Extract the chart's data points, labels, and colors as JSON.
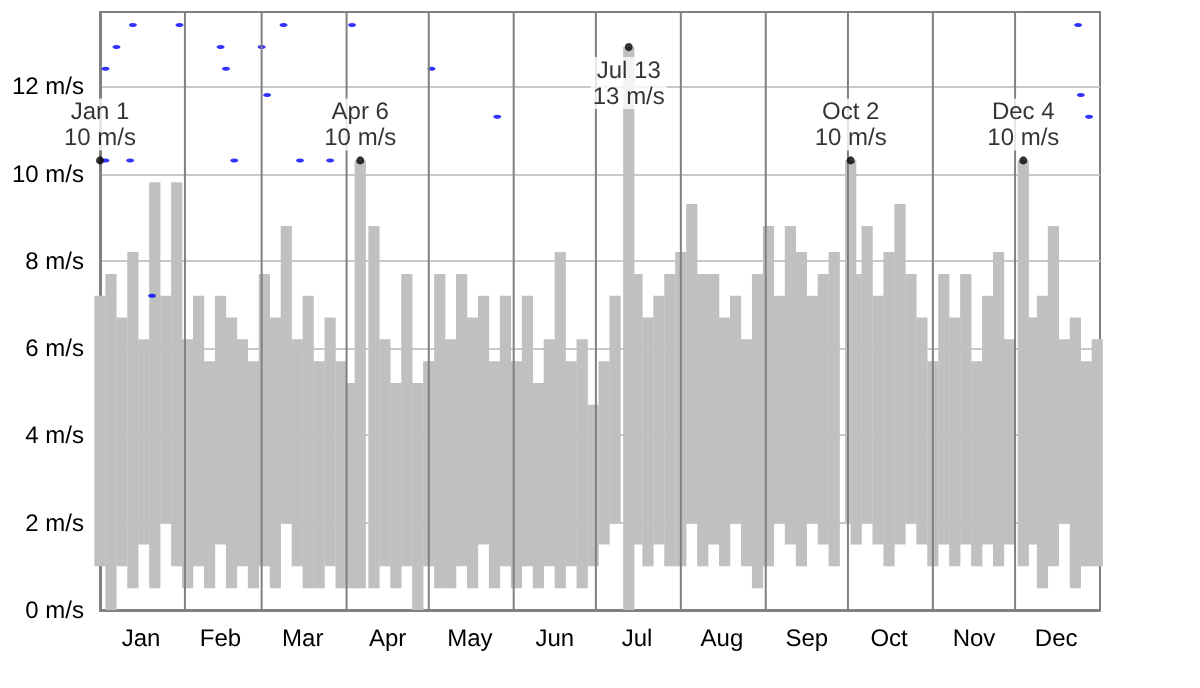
{
  "chart_data": {
    "type": "bar",
    "series": [
      {
        "type": "bar",
        "color": "#c0c0c0",
        "x": [
          "--01-01",
          "--01-05",
          "--01-09",
          "--01-13",
          "--01-17",
          "--01-21",
          "--01-25",
          "--01-29",
          "--02-02",
          "--02-06",
          "--02-10",
          "--02-14",
          "--02-18",
          "--02-22",
          "--02-26",
          "--03-02",
          "--03-06",
          "--03-10",
          "--03-14",
          "--03-18",
          "--03-22",
          "--03-26",
          "--03-30",
          "--04-03",
          "--04-06",
          "--04-11",
          "--04-15",
          "--04-19",
          "--04-23",
          "--04-27",
          "--05-01",
          "--05-05",
          "--05-09",
          "--05-13",
          "--05-17",
          "--05-21",
          "--05-25",
          "--05-29",
          "--06-02",
          "--06-06",
          "--06-10",
          "--06-14",
          "--06-18",
          "--06-22",
          "--06-26",
          "--06-30",
          "--07-04",
          "--07-08",
          "--07-13",
          "--07-16",
          "--07-20",
          "--07-24",
          "--07-28",
          "--08-01",
          "--08-05",
          "--08-09",
          "--08-13",
          "--08-17",
          "--08-21",
          "--08-25",
          "--08-29",
          "--09-02",
          "--09-06",
          "--09-10",
          "--09-14",
          "--09-18",
          "--09-22",
          "--09-26",
          "--10-02",
          "--10-04",
          "--10-08",
          "--10-12",
          "--10-16",
          "--10-20",
          "--10-24",
          "--10-28",
          "--11-01",
          "--11-05",
          "--11-09",
          "--11-13",
          "--11-17",
          "--11-21",
          "--11-25",
          "--11-29",
          "--12-04",
          "--12-07",
          "--12-11",
          "--12-15",
          "--12-19",
          "--12-23",
          "--12-27",
          "--12-31"
        ],
        "base": [
          1.0,
          0,
          1.0,
          0.5,
          1.5,
          0.5,
          2.0,
          1.0,
          0.5,
          1.0,
          0.5,
          1.5,
          0.5,
          1.0,
          0.5,
          1.0,
          0.5,
          2.0,
          1.0,
          0.5,
          0.5,
          1.0,
          0.5,
          0.5,
          0.5,
          0.5,
          1.0,
          0.5,
          1.0,
          0,
          1.0,
          0.5,
          0.5,
          1.0,
          0.5,
          1.5,
          0.5,
          1.0,
          0.5,
          1.0,
          0.5,
          1.0,
          0.5,
          1.0,
          0.5,
          1.0,
          1.5,
          2.0,
          0,
          1.5,
          1.0,
          1.5,
          1.0,
          1.0,
          2.0,
          1.0,
          1.5,
          1.0,
          2.0,
          1.0,
          0.5,
          1.0,
          2.0,
          1.5,
          1.0,
          2.0,
          1.5,
          1.0,
          2.0,
          1.5,
          2.0,
          1.5,
          1.0,
          1.5,
          2.0,
          1.5,
          1.0,
          1.5,
          1.0,
          1.5,
          1.0,
          1.5,
          1.0,
          1.5,
          1.0,
          1.5,
          0.5,
          1.0,
          2.0,
          0.5,
          1.0,
          1.0
        ],
        "values": [
          6.2,
          7.7,
          5.7,
          7.7,
          4.7,
          9.3,
          5.2,
          8.8,
          5.7,
          6.2,
          5.2,
          5.7,
          6.2,
          5.2,
          5.2,
          6.7,
          6.2,
          6.8,
          5.2,
          6.7,
          5.2,
          5.7,
          5.2,
          4.7,
          9.8,
          8.3,
          5.2,
          4.7,
          6.7,
          5.2,
          4.7,
          7.2,
          5.7,
          6.7,
          6.2,
          5.7,
          5.2,
          6.2,
          5.2,
          6.2,
          4.7,
          5.2,
          7.7,
          4.7,
          5.7,
          3.7,
          4.2,
          5.2,
          12.9,
          6.2,
          5.7,
          5.7,
          6.7,
          7.2,
          7.3,
          6.7,
          6.2,
          5.7,
          5.2,
          5.2,
          7.2,
          7.8,
          5.2,
          7.3,
          7.2,
          5.2,
          6.2,
          7.2,
          8.3,
          6.2,
          6.8,
          5.7,
          7.2,
          7.8,
          5.7,
          5.2,
          4.7,
          6.2,
          5.7,
          6.2,
          4.7,
          5.7,
          7.2,
          4.7,
          9.3,
          5.2,
          6.7,
          7.8,
          4.2,
          6.2,
          4.7,
          5.2
        ]
      },
      {
        "type": "scatter",
        "color": "#0000ff",
        "x": [
          "--01-03",
          "--01-03",
          "--01-07",
          "--01-12",
          "--01-13",
          "--01-20",
          "--01-30",
          "--02-14",
          "--02-16",
          "--02-19",
          "--03-01",
          "--03-03",
          "--03-09",
          "--03-15",
          "--03-26",
          "--04-03",
          "--05-02",
          "--05-26",
          "--12-24",
          "--12-25",
          "--12-28"
        ],
        "values": [
          12.4,
          10.3,
          12.9,
          10.3,
          13.4,
          7.2,
          13.4,
          12.9,
          12.4,
          10.3,
          12.9,
          11.8,
          13.4,
          10.3,
          10.3,
          13.4,
          12.4,
          11.3,
          13.4,
          11.8,
          11.3
        ]
      }
    ],
    "annotations": [
      {
        "text": "Jan 1\n10 m/s",
        "x": "--01-01",
        "y": 10.3
      },
      {
        "text": "Apr 6\n10 m/s",
        "x": "--04-06",
        "y": 10.3
      },
      {
        "text": "Jul 13\n13 m/s",
        "x": "--07-13",
        "y": 12.9
      },
      {
        "text": "Oct 2\n10 m/s",
        "x": "--10-02",
        "y": 10.3
      },
      {
        "text": "Dec 4\n10 m/s",
        "x": "--12-04",
        "y": 10.3
      }
    ],
    "xlim": [
      "--01-01",
      "--12-31"
    ],
    "xticks": [
      {
        "value": "--01-16",
        "label": "Jan"
      },
      {
        "value": "--02-01",
        "label": null
      },
      {
        "value": "--02-14",
        "label": "Feb"
      },
      {
        "value": "--03-01",
        "label": null
      },
      {
        "value": "--03-16",
        "label": "Mar"
      },
      {
        "value": "--04-01",
        "label": null
      },
      {
        "value": "--04-16",
        "label": "Apr"
      },
      {
        "value": "--05-01",
        "label": null
      },
      {
        "value": "--05-16",
        "label": "May"
      },
      {
        "value": "--06-01",
        "label": null
      },
      {
        "value": "--06-16",
        "label": "Jun"
      },
      {
        "value": "--07-01",
        "label": null
      },
      {
        "value": "--07-16",
        "label": "Jul"
      },
      {
        "value": "--08-01",
        "label": null
      },
      {
        "value": "--08-16",
        "label": "Aug"
      },
      {
        "value": "--09-01",
        "label": null
      },
      {
        "value": "--09-16",
        "label": "Sep"
      },
      {
        "value": "--10-01",
        "label": null
      },
      {
        "value": "--10-16",
        "label": "Oct"
      },
      {
        "value": "--11-01",
        "label": null
      },
      {
        "value": "--11-16",
        "label": "Nov"
      },
      {
        "value": "--12-01",
        "label": null
      },
      {
        "value": "--12-16",
        "label": "Dec"
      }
    ],
    "ylim": [
      0,
      13.7
    ],
    "yticks": [
      {
        "value": 0,
        "label": "0 m/s"
      },
      {
        "value": 2,
        "label": "2 m/s"
      },
      {
        "value": 4,
        "label": "4 m/s"
      },
      {
        "value": 6,
        "label": "6 m/s"
      },
      {
        "value": 8,
        "label": "8 m/s"
      },
      {
        "value": 10,
        "label": "10 m/s"
      },
      {
        "value": 12,
        "label": "12 m/s"
      }
    ],
    "grid": true
  }
}
